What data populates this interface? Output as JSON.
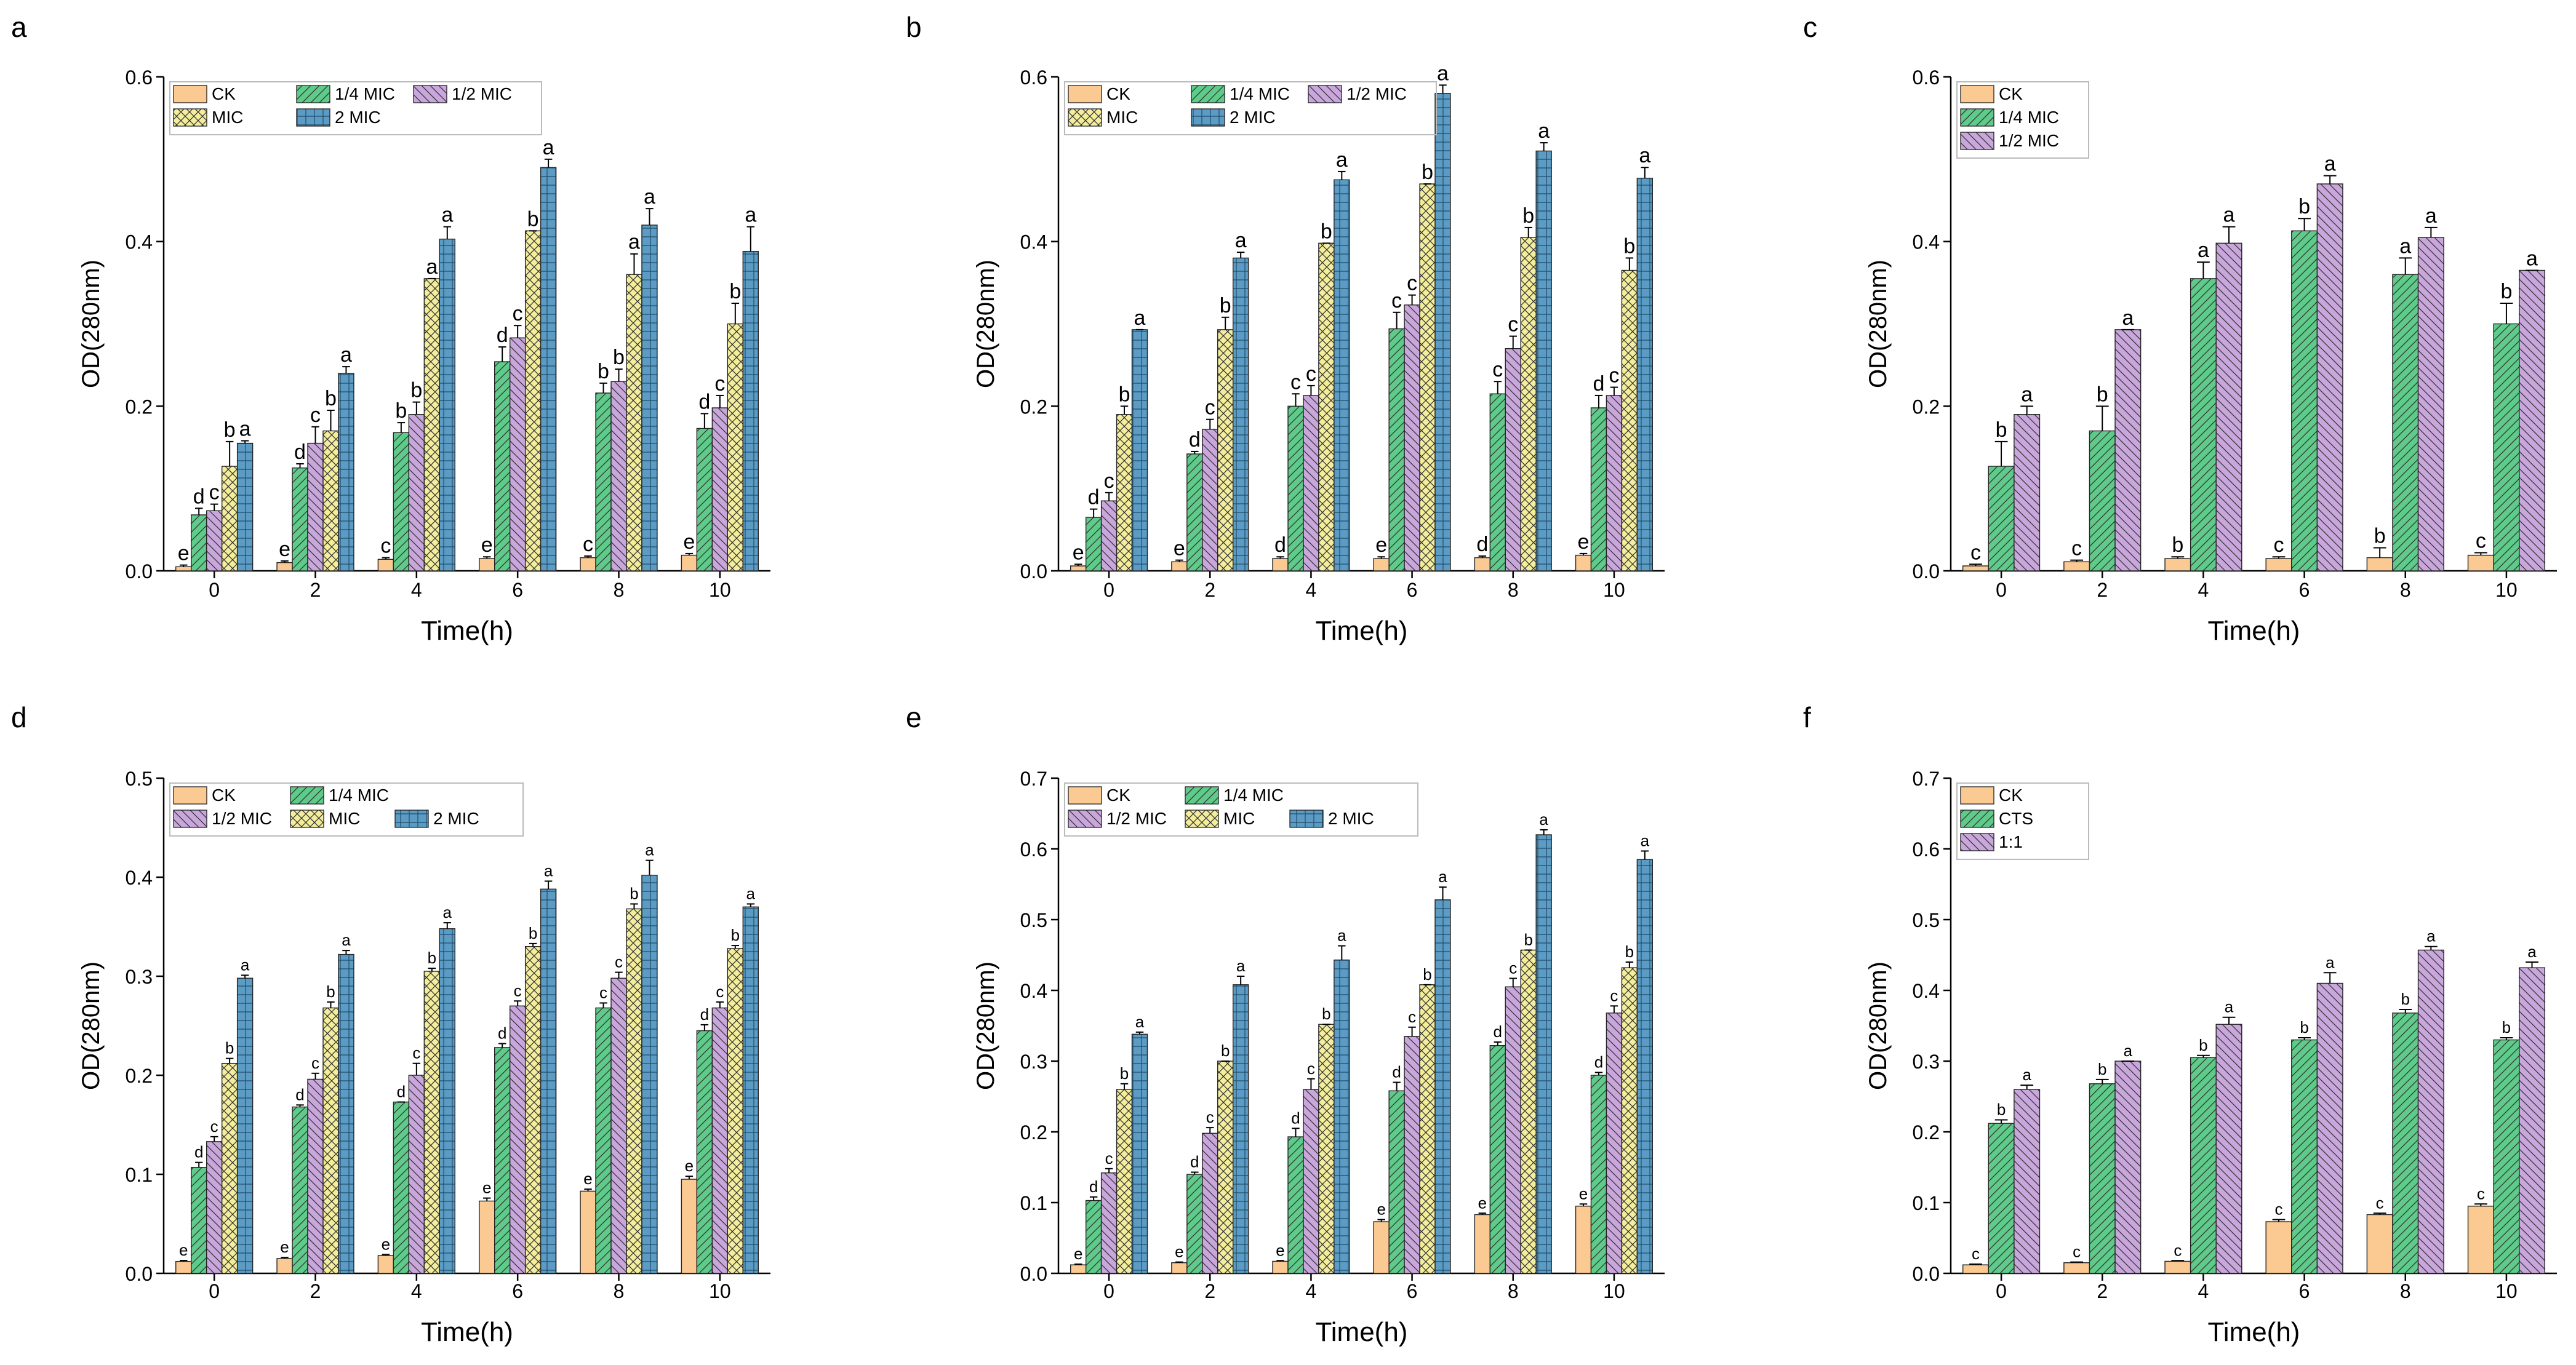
{
  "figure": {
    "series_styles": {
      "CK": {
        "color": "#FBC992",
        "pattern": "none"
      },
      "1/4 MIC": {
        "color": "#5FCB8A",
        "pattern": "hatch-diag"
      },
      "1/2 MIC": {
        "color": "#C9A7DC",
        "pattern": "hatch-back"
      },
      "MIC": {
        "color": "#F4EE9C",
        "pattern": "crosshatch"
      },
      "2 MIC": {
        "color": "#5C9CC4",
        "pattern": "dots"
      },
      "CTS": {
        "color": "#5FCB8A",
        "pattern": "hatch-diag"
      },
      "1:1": {
        "color": "#C9A7DC",
        "pattern": "hatch-back"
      }
    }
  },
  "chart_data": [
    {
      "panel": "a",
      "type": "bar",
      "xlabel": "Time(h)",
      "ylabel": "OD(280nm)",
      "ylim": [
        0,
        0.6
      ],
      "yticks": [
        "0.0",
        "0.2",
        "0.4",
        "0.6"
      ],
      "categories": [
        "0",
        "2",
        "4",
        "6",
        "8",
        "10"
      ],
      "legend": [
        [
          "CK",
          "1/4 MIC",
          "1/2 MIC"
        ],
        [
          "MIC",
          "2 MIC"
        ]
      ],
      "series": [
        {
          "name": "CK",
          "values": [
            0.005,
            0.01,
            0.014,
            0.015,
            0.016,
            0.019
          ],
          "err": [
            0.002,
            0.002,
            0.002,
            0.002,
            0.002,
            0.002
          ],
          "letters": [
            "e",
            "e",
            "c",
            "e",
            "c",
            "e"
          ]
        },
        {
          "name": "1/4 MIC",
          "values": [
            0.068,
            0.125,
            0.168,
            0.254,
            0.216,
            0.173
          ],
          "err": [
            0.008,
            0.005,
            0.012,
            0.018,
            0.012,
            0.018
          ],
          "letters": [
            "d",
            "d",
            "b",
            "d",
            "b",
            "d"
          ]
        },
        {
          "name": "1/2 MIC",
          "values": [
            0.073,
            0.155,
            0.19,
            0.283,
            0.23,
            0.198
          ],
          "err": [
            0.008,
            0.02,
            0.015,
            0.015,
            0.015,
            0.015
          ],
          "letters": [
            "c",
            "c",
            "b",
            "c",
            "b",
            "c"
          ]
        },
        {
          "name": "MIC",
          "values": [
            0.127,
            0.17,
            0.355,
            0.413,
            0.36,
            0.3
          ],
          "err": [
            0.03,
            0.025,
            0.0,
            0.0,
            0.025,
            0.025
          ],
          "letters": [
            "b",
            "b",
            "a",
            "b",
            "a",
            "b"
          ]
        },
        {
          "name": "2 MIC",
          "values": [
            0.155,
            0.24,
            0.403,
            0.49,
            0.42,
            0.388
          ],
          "err": [
            0.003,
            0.008,
            0.015,
            0.01,
            0.02,
            0.03
          ],
          "letters": [
            "a",
            "a",
            "a",
            "a",
            "a",
            "a"
          ]
        }
      ]
    },
    {
      "panel": "b",
      "type": "bar",
      "xlabel": "Time(h)",
      "ylabel": "OD(280nm)",
      "ylim": [
        0,
        0.6
      ],
      "yticks": [
        "0.0",
        "0.2",
        "0.4",
        "0.6"
      ],
      "categories": [
        "0",
        "2",
        "4",
        "6",
        "8",
        "10"
      ],
      "legend": [
        [
          "CK",
          "1/4 MIC",
          "1/2 MIC"
        ],
        [
          "MIC",
          "2 MIC"
        ]
      ],
      "series": [
        {
          "name": "CK",
          "values": [
            0.006,
            0.011,
            0.015,
            0.015,
            0.016,
            0.019
          ],
          "err": [
            0.002,
            0.002,
            0.002,
            0.002,
            0.002,
            0.002
          ],
          "letters": [
            "e",
            "e",
            "d",
            "e",
            "d",
            "e"
          ]
        },
        {
          "name": "1/4 MIC",
          "values": [
            0.065,
            0.142,
            0.2,
            0.294,
            0.215,
            0.198
          ],
          "err": [
            0.01,
            0.003,
            0.015,
            0.02,
            0.015,
            0.015
          ],
          "letters": [
            "d",
            "d",
            "c",
            "c",
            "c",
            "d"
          ]
        },
        {
          "name": "1/2 MIC",
          "values": [
            0.085,
            0.172,
            0.213,
            0.323,
            0.27,
            0.213
          ],
          "err": [
            0.01,
            0.012,
            0.012,
            0.012,
            0.015,
            0.01
          ],
          "letters": [
            "c",
            "c",
            "c",
            "c",
            "c",
            "c"
          ]
        },
        {
          "name": "MIC",
          "values": [
            0.19,
            0.293,
            0.398,
            0.47,
            0.405,
            0.365
          ],
          "err": [
            0.01,
            0.015,
            0.0,
            0.0,
            0.012,
            0.015
          ],
          "letters": [
            "b",
            "b",
            "b",
            "b",
            "b",
            "b"
          ]
        },
        {
          "name": "2 MIC",
          "values": [
            0.293,
            0.38,
            0.475,
            0.58,
            0.51,
            0.477
          ],
          "err": [
            0.0,
            0.007,
            0.01,
            0.01,
            0.01,
            0.013
          ],
          "letters": [
            "a",
            "a",
            "a",
            "a",
            "a",
            "a"
          ]
        }
      ]
    },
    {
      "panel": "c",
      "type": "bar",
      "xlabel": "Time(h)",
      "ylabel": "OD(280nm)",
      "ylim": [
        0,
        0.6
      ],
      "yticks": [
        "0.0",
        "0.2",
        "0.4",
        "0.6"
      ],
      "categories": [
        "0",
        "2",
        "4",
        "6",
        "8",
        "10"
      ],
      "legend": [
        [
          "CK"
        ],
        [
          "1/4 MIC"
        ],
        [
          "1/2 MIC"
        ]
      ],
      "series": [
        {
          "name": "CK",
          "values": [
            0.006,
            0.011,
            0.015,
            0.015,
            0.016,
            0.019
          ],
          "err": [
            0.002,
            0.002,
            0.002,
            0.002,
            0.012,
            0.003
          ],
          "letters": [
            "c",
            "c",
            "b",
            "c",
            "b",
            "c"
          ]
        },
        {
          "name": "1/4 MIC",
          "values": [
            0.127,
            0.17,
            0.355,
            0.413,
            0.36,
            0.3
          ],
          "err": [
            0.03,
            0.03,
            0.02,
            0.015,
            0.02,
            0.025
          ],
          "letters": [
            "b",
            "b",
            "a",
            "b",
            "a",
            "b"
          ]
        },
        {
          "name": "1/2 MIC",
          "values": [
            0.19,
            0.293,
            0.398,
            0.47,
            0.405,
            0.365
          ],
          "err": [
            0.01,
            0.0,
            0.02,
            0.01,
            0.012,
            0.0
          ],
          "letters": [
            "a",
            "a",
            "a",
            "a",
            "a",
            "a"
          ]
        }
      ]
    },
    {
      "panel": "d",
      "type": "bar",
      "xlabel": "Time(h)",
      "ylabel": "OD(280nm)",
      "ylim": [
        0,
        0.5
      ],
      "yticks": [
        "0.0",
        "0.1",
        "0.2",
        "0.3",
        "0.4",
        "0.5"
      ],
      "categories": [
        "0",
        "2",
        "4",
        "6",
        "8",
        "10"
      ],
      "legend": [
        [
          "CK",
          "1/4 MIC"
        ],
        [
          "1/2 MIC",
          "MIC",
          "2 MIC"
        ]
      ],
      "series": [
        {
          "name": "CK",
          "values": [
            0.012,
            0.015,
            0.018,
            0.073,
            0.083,
            0.095
          ],
          "err": [
            0.001,
            0.001,
            0.001,
            0.003,
            0.002,
            0.003
          ],
          "letters": [
            "e",
            "e",
            "e",
            "e",
            "e",
            "e"
          ]
        },
        {
          "name": "1/4 MIC",
          "values": [
            0.107,
            0.168,
            0.173,
            0.228,
            0.268,
            0.245
          ],
          "err": [
            0.005,
            0.002,
            0.0,
            0.004,
            0.005,
            0.006
          ],
          "letters": [
            "d",
            "d",
            "d",
            "d",
            "c",
            "d"
          ]
        },
        {
          "name": "1/2 MIC",
          "values": [
            0.133,
            0.196,
            0.2,
            0.27,
            0.298,
            0.268
          ],
          "err": [
            0.005,
            0.006,
            0.012,
            0.005,
            0.006,
            0.006
          ],
          "letters": [
            "c",
            "c",
            "c",
            "c",
            "c",
            "c"
          ]
        },
        {
          "name": "MIC",
          "values": [
            0.212,
            0.268,
            0.305,
            0.33,
            0.368,
            0.328
          ],
          "err": [
            0.005,
            0.006,
            0.003,
            0.003,
            0.005,
            0.003
          ],
          "letters": [
            "b",
            "b",
            "b",
            "b",
            "b",
            "b"
          ]
        },
        {
          "name": "2 MIC",
          "values": [
            0.298,
            0.322,
            0.348,
            0.388,
            0.402,
            0.37
          ],
          "err": [
            0.003,
            0.004,
            0.006,
            0.008,
            0.015,
            0.003
          ],
          "letters": [
            "a",
            "a",
            "a",
            "a",
            "a",
            "a"
          ]
        }
      ]
    },
    {
      "panel": "e",
      "type": "bar",
      "xlabel": "Time(h)",
      "ylabel": "OD(280nm)",
      "ylim": [
        0,
        0.7
      ],
      "yticks": [
        "0.0",
        "0.1",
        "0.2",
        "0.3",
        "0.4",
        "0.5",
        "0.6",
        "0.7"
      ],
      "categories": [
        "0",
        "2",
        "4",
        "6",
        "8",
        "10"
      ],
      "legend": [
        [
          "CK",
          "1/4 MIC"
        ],
        [
          "1/2 MIC",
          "MIC",
          "2 MIC"
        ]
      ],
      "series": [
        {
          "name": "CK",
          "values": [
            0.012,
            0.015,
            0.017,
            0.073,
            0.083,
            0.095
          ],
          "err": [
            0.001,
            0.001,
            0.001,
            0.003,
            0.002,
            0.003
          ],
          "letters": [
            "e",
            "e",
            "e",
            "e",
            "e",
            "e"
          ]
        },
        {
          "name": "1/4 MIC",
          "values": [
            0.103,
            0.14,
            0.193,
            0.258,
            0.322,
            0.28
          ],
          "err": [
            0.005,
            0.003,
            0.012,
            0.012,
            0.005,
            0.004
          ],
          "letters": [
            "d",
            "d",
            "d",
            "d",
            "d",
            "d"
          ]
        },
        {
          "name": "1/2 MIC",
          "values": [
            0.142,
            0.198,
            0.26,
            0.335,
            0.405,
            0.368
          ],
          "err": [
            0.006,
            0.008,
            0.015,
            0.013,
            0.012,
            0.01
          ],
          "letters": [
            "c",
            "c",
            "c",
            "c",
            "c",
            "c"
          ]
        },
        {
          "name": "MIC",
          "values": [
            0.26,
            0.3,
            0.352,
            0.408,
            0.457,
            0.432
          ],
          "err": [
            0.008,
            0.0,
            0.0,
            0.0,
            0.0,
            0.008
          ],
          "letters": [
            "b",
            "b",
            "b",
            "b",
            "b",
            "b"
          ]
        },
        {
          "name": "2 MIC",
          "values": [
            0.338,
            0.408,
            0.443,
            0.528,
            0.62,
            0.585
          ],
          "err": [
            0.003,
            0.012,
            0.02,
            0.018,
            0.007,
            0.012
          ],
          "letters": [
            "a",
            "a",
            "a",
            "a",
            "a",
            "a"
          ]
        }
      ]
    },
    {
      "panel": "f",
      "type": "bar",
      "xlabel": "Time(h)",
      "ylabel": "OD(280nm)",
      "ylim": [
        0,
        0.7
      ],
      "yticks": [
        "0.0",
        "0.1",
        "0.2",
        "0.3",
        "0.4",
        "0.5",
        "0.6",
        "0.7"
      ],
      "categories": [
        "0",
        "2",
        "4",
        "6",
        "8",
        "10"
      ],
      "legend": [
        [
          "CK"
        ],
        [
          "CTS"
        ],
        [
          "1:1"
        ]
      ],
      "series": [
        {
          "name": "CK",
          "values": [
            0.012,
            0.015,
            0.017,
            0.073,
            0.083,
            0.095
          ],
          "err": [
            0.001,
            0.001,
            0.001,
            0.003,
            0.002,
            0.003
          ],
          "letters": [
            "c",
            "c",
            "c",
            "c",
            "c",
            "c"
          ]
        },
        {
          "name": "CTS",
          "values": [
            0.212,
            0.268,
            0.305,
            0.33,
            0.368,
            0.33
          ],
          "err": [
            0.005,
            0.006,
            0.003,
            0.003,
            0.005,
            0.003
          ],
          "letters": [
            "b",
            "b",
            "b",
            "b",
            "b",
            "b"
          ]
        },
        {
          "name": "1:1",
          "values": [
            0.26,
            0.3,
            0.352,
            0.41,
            0.457,
            0.432
          ],
          "err": [
            0.006,
            0.0,
            0.01,
            0.015,
            0.005,
            0.008
          ],
          "letters": [
            "a",
            "a",
            "a",
            "a",
            "a",
            "a"
          ]
        }
      ]
    }
  ]
}
